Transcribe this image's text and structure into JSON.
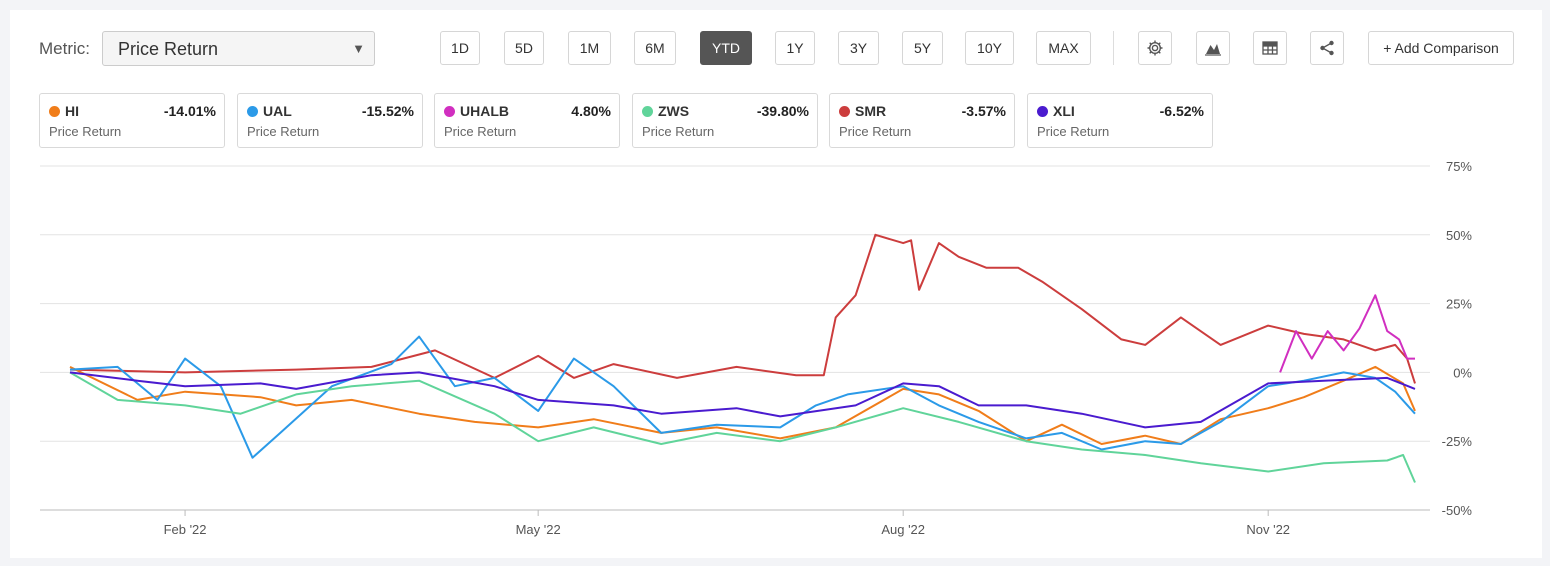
{
  "toolbar": {
    "metric_label": "Metric:",
    "metric_value": "Price Return",
    "ranges": [
      "1D",
      "5D",
      "1M",
      "6M",
      "YTD",
      "1Y",
      "3Y",
      "5Y",
      "10Y",
      "MAX"
    ],
    "active_range": "YTD",
    "add_comparison": "+ Add Comparison",
    "icons": [
      "gear-icon",
      "mountain-chart-icon",
      "table-icon",
      "share-icon"
    ]
  },
  "legend": [
    {
      "ticker": "HI",
      "value": "-14.01%",
      "metric": "Price Return",
      "color": "#f07d1a"
    },
    {
      "ticker": "UAL",
      "value": "-15.52%",
      "metric": "Price Return",
      "color": "#2b9ae8"
    },
    {
      "ticker": "UHALB",
      "value": "4.80%",
      "metric": "Price Return",
      "color": "#d12fc0"
    },
    {
      "ticker": "ZWS",
      "value": "-39.80%",
      "metric": "Price Return",
      "color": "#60d49a"
    },
    {
      "ticker": "SMR",
      "value": "-3.57%",
      "metric": "Price Return",
      "color": "#cc3d3d"
    },
    {
      "ticker": "XLI",
      "value": "-6.52%",
      "metric": "Price Return",
      "color": "#4a1bcf"
    }
  ],
  "chart_data": {
    "type": "line",
    "x_start": "2022-01-03",
    "x_end": "2022-12-08",
    "ylim": [
      -50,
      75
    ],
    "y_ticks": [
      75,
      50,
      25,
      0,
      -25,
      -50
    ],
    "y_tick_labels": [
      "75%",
      "50%",
      "25%",
      "0%",
      "-25%",
      "-50%"
    ],
    "x_ticks": [
      "2022-02-01",
      "2022-05-01",
      "2022-08-01",
      "2022-11-01"
    ],
    "x_tick_labels": [
      "Feb '22",
      "May '22",
      "Aug '22",
      "Nov '22"
    ],
    "grid": true,
    "series": [
      {
        "name": "SMR",
        "color": "#cc3d3d",
        "x": [
          "2022-01-03",
          "2022-02-01",
          "2022-03-01",
          "2022-03-20",
          "2022-04-05",
          "2022-04-20",
          "2022-05-01",
          "2022-05-10",
          "2022-05-20",
          "2022-06-05",
          "2022-06-20",
          "2022-07-05",
          "2022-07-12",
          "2022-07-15",
          "2022-07-20",
          "2022-07-25",
          "2022-08-01",
          "2022-08-03",
          "2022-08-05",
          "2022-08-10",
          "2022-08-15",
          "2022-08-22",
          "2022-08-30",
          "2022-09-05",
          "2022-09-15",
          "2022-09-25",
          "2022-10-01",
          "2022-10-10",
          "2022-10-20",
          "2022-11-01",
          "2022-11-10",
          "2022-11-20",
          "2022-11-28",
          "2022-12-03",
          "2022-12-06",
          "2022-12-08"
        ],
        "values": [
          1,
          0,
          1,
          2,
          8,
          -2,
          6,
          -2,
          3,
          -2,
          2,
          -1,
          -1,
          20,
          28,
          50,
          47,
          48,
          30,
          47,
          42,
          38,
          38,
          33,
          23,
          12,
          10,
          20,
          10,
          17,
          14,
          12,
          8,
          10,
          5,
          -4
        ]
      },
      {
        "name": "HI",
        "color": "#f07d1a",
        "x": [
          "2022-01-03",
          "2022-01-20",
          "2022-02-01",
          "2022-02-20",
          "2022-03-01",
          "2022-03-15",
          "2022-04-01",
          "2022-04-15",
          "2022-05-01",
          "2022-05-15",
          "2022-06-01",
          "2022-06-15",
          "2022-07-01",
          "2022-07-15",
          "2022-08-01",
          "2022-08-10",
          "2022-08-20",
          "2022-09-01",
          "2022-09-10",
          "2022-09-20",
          "2022-10-01",
          "2022-10-10",
          "2022-10-20",
          "2022-11-01",
          "2022-11-10",
          "2022-11-20",
          "2022-11-28",
          "2022-12-05",
          "2022-12-08"
        ],
        "values": [
          2,
          -10,
          -7,
          -9,
          -12,
          -10,
          -15,
          -18,
          -20,
          -17,
          -22,
          -20,
          -24,
          -20,
          -6,
          -8,
          -14,
          -25,
          -19,
          -26,
          -23,
          -26,
          -17,
          -13,
          -9,
          -3,
          2,
          -4,
          -14
        ]
      },
      {
        "name": "UAL",
        "color": "#2b9ae8",
        "x": [
          "2022-01-03",
          "2022-01-15",
          "2022-01-25",
          "2022-02-01",
          "2022-02-10",
          "2022-02-18",
          "2022-02-25",
          "2022-03-10",
          "2022-03-25",
          "2022-04-01",
          "2022-04-10",
          "2022-04-20",
          "2022-05-01",
          "2022-05-10",
          "2022-05-20",
          "2022-06-01",
          "2022-06-15",
          "2022-07-01",
          "2022-07-10",
          "2022-07-18",
          "2022-08-01",
          "2022-08-10",
          "2022-08-20",
          "2022-09-01",
          "2022-09-10",
          "2022-09-20",
          "2022-10-01",
          "2022-10-10",
          "2022-10-20",
          "2022-11-01",
          "2022-11-10",
          "2022-11-20",
          "2022-11-28",
          "2022-12-03",
          "2022-12-08"
        ],
        "values": [
          1,
          2,
          -10,
          5,
          -5,
          -31,
          -22,
          -5,
          3,
          13,
          -5,
          -2,
          -14,
          5,
          -5,
          -22,
          -19,
          -20,
          -12,
          -8,
          -5,
          -12,
          -18,
          -24,
          -22,
          -28,
          -25,
          -26,
          -18,
          -5,
          -3,
          0,
          -2,
          -7,
          -15
        ]
      },
      {
        "name": "ZWS",
        "color": "#60d49a",
        "x": [
          "2022-01-03",
          "2022-01-15",
          "2022-02-01",
          "2022-02-15",
          "2022-03-01",
          "2022-03-15",
          "2022-04-01",
          "2022-04-20",
          "2022-05-01",
          "2022-05-15",
          "2022-06-01",
          "2022-06-15",
          "2022-07-01",
          "2022-07-15",
          "2022-08-01",
          "2022-08-15",
          "2022-09-01",
          "2022-09-15",
          "2022-10-01",
          "2022-10-15",
          "2022-11-01",
          "2022-11-15",
          "2022-12-01",
          "2022-12-05",
          "2022-12-08"
        ],
        "values": [
          0,
          -10,
          -12,
          -15,
          -8,
          -5,
          -3,
          -15,
          -25,
          -20,
          -26,
          -22,
          -25,
          -20,
          -13,
          -18,
          -25,
          -28,
          -30,
          -33,
          -36,
          -33,
          -32,
          -30,
          -40
        ]
      },
      {
        "name": "XLI",
        "color": "#4a1bcf",
        "x": [
          "2022-01-03",
          "2022-01-20",
          "2022-02-01",
          "2022-02-20",
          "2022-03-01",
          "2022-03-20",
          "2022-04-01",
          "2022-04-20",
          "2022-05-01",
          "2022-05-20",
          "2022-06-01",
          "2022-06-20",
          "2022-07-01",
          "2022-07-20",
          "2022-08-01",
          "2022-08-10",
          "2022-08-20",
          "2022-09-01",
          "2022-09-15",
          "2022-10-01",
          "2022-10-15",
          "2022-11-01",
          "2022-11-15",
          "2022-12-01",
          "2022-12-08"
        ],
        "values": [
          0,
          -3,
          -5,
          -4,
          -6,
          -1,
          0,
          -5,
          -10,
          -12,
          -15,
          -13,
          -16,
          -12,
          -4,
          -5,
          -12,
          -12,
          -15,
          -20,
          -18,
          -4,
          -3,
          -2,
          -6
        ]
      },
      {
        "name": "UHALB",
        "color": "#d12fc0",
        "x": [
          "2022-11-04",
          "2022-11-08",
          "2022-11-12",
          "2022-11-16",
          "2022-11-20",
          "2022-11-24",
          "2022-11-28",
          "2022-12-01",
          "2022-12-04",
          "2022-12-06",
          "2022-12-08"
        ],
        "values": [
          0,
          15,
          5,
          15,
          8,
          16,
          28,
          15,
          12,
          5,
          5
        ]
      }
    ]
  }
}
